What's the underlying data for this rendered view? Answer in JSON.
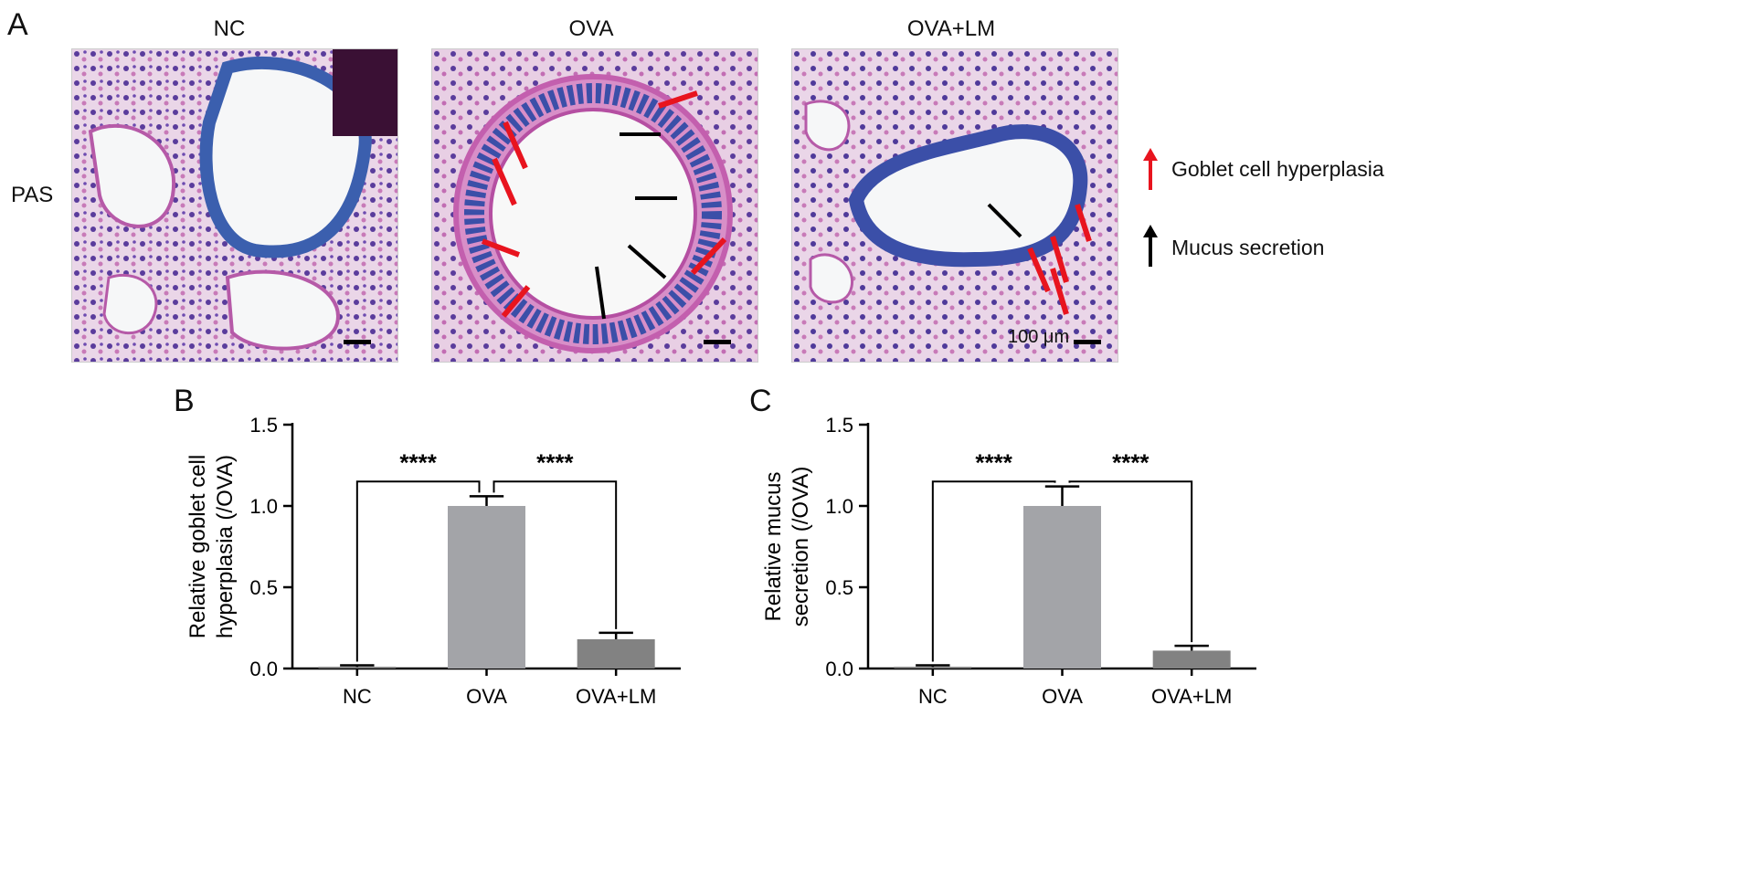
{
  "panel_a": {
    "label": "A",
    "row_label": "PAS",
    "columns": [
      "NC",
      "OVA",
      "OVA+LM"
    ],
    "scale_bar_text": "100 μm",
    "legend": [
      {
        "text": "Goblet cell hyperplasia",
        "color": "#e8141e",
        "icon": "red-up-arrow-icon"
      },
      {
        "text": "Mucus secretion",
        "color": "#000000",
        "icon": "black-up-arrow-icon"
      }
    ]
  },
  "chart_data": [
    {
      "panel": "B",
      "type": "bar",
      "categories": [
        "NC",
        "OVA",
        "OVA+LM"
      ],
      "values": [
        0.01,
        1.0,
        0.18
      ],
      "errors": [
        0.01,
        0.06,
        0.04
      ],
      "bar_colors": [
        "#707070",
        "#a3a4a8",
        "#828282"
      ],
      "ylabel_lines": [
        "Relative goblet cell",
        "hyperplasia (/OVA)"
      ],
      "ylim": [
        0,
        1.5
      ],
      "yticks": [
        "0.0",
        "0.5",
        "1.0",
        "1.5"
      ],
      "significance": [
        {
          "from": 0,
          "to": 1,
          "label": "****"
        },
        {
          "from": 1,
          "to": 2,
          "label": "****"
        }
      ]
    },
    {
      "panel": "C",
      "type": "bar",
      "categories": [
        "NC",
        "OVA",
        "OVA+LM"
      ],
      "values": [
        0.01,
        1.0,
        0.11
      ],
      "errors": [
        0.01,
        0.12,
        0.03
      ],
      "bar_colors": [
        "#707070",
        "#a3a4a8",
        "#828282"
      ],
      "ylabel_lines": [
        "Relative mucus",
        "secretion (/OVA)"
      ],
      "ylim": [
        0,
        1.5
      ],
      "yticks": [
        "0.0",
        "0.5",
        "1.0",
        "1.5"
      ],
      "significance": [
        {
          "from": 0,
          "to": 1,
          "label": "****"
        },
        {
          "from": 1,
          "to": 2,
          "label": "****"
        }
      ]
    }
  ]
}
